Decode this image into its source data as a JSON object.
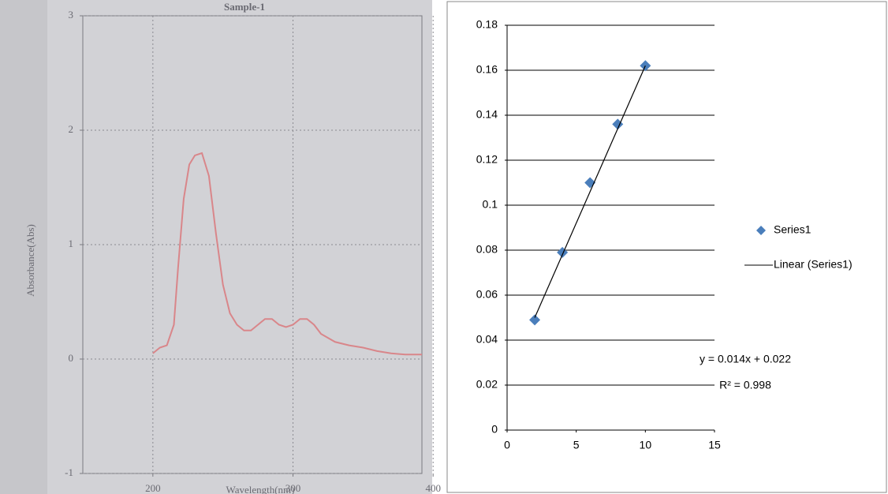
{
  "chart_data": [
    {
      "type": "line",
      "title": "Sample-1",
      "x_label": "Wavelength(nm)",
      "y_label": "Absorbance(Abs)",
      "x": [
        200,
        205,
        210,
        215,
        218,
        222,
        226,
        230,
        235,
        240,
        245,
        250,
        255,
        260,
        265,
        270,
        275,
        280,
        285,
        290,
        295,
        300,
        305,
        310,
        315,
        320,
        330,
        340,
        350,
        360,
        370,
        380,
        392
      ],
      "values": [
        0.05,
        0.1,
        0.12,
        0.3,
        0.8,
        1.4,
        1.7,
        1.78,
        1.8,
        1.6,
        1.1,
        0.65,
        0.4,
        0.3,
        0.25,
        0.25,
        0.3,
        0.35,
        0.35,
        0.3,
        0.28,
        0.3,
        0.35,
        0.35,
        0.3,
        0.22,
        0.15,
        0.12,
        0.1,
        0.07,
        0.05,
        0.04,
        0.04
      ],
      "color": "#d9868a",
      "xlim": [
        150,
        392
      ],
      "ylim": [
        -1,
        3
      ],
      "xticks": [
        200,
        300,
        400
      ],
      "yticks": [
        -1,
        0,
        1,
        2,
        3
      ],
      "grid": "both"
    },
    {
      "type": "scatter",
      "series": [
        {
          "name": "Series1",
          "color": "#4a7ebb",
          "marker": "diamond",
          "x": [
            2,
            4,
            6,
            8,
            10
          ],
          "values": [
            0.049,
            0.079,
            0.11,
            0.136,
            0.162
          ]
        },
        {
          "name": "Linear (Series1)",
          "color": "#000000",
          "marker": "line",
          "x": [
            2,
            10
          ],
          "values": [
            0.05,
            0.162
          ]
        }
      ],
      "annotations": [
        "y = 0.014x + 0.022",
        "R² = 0.998"
      ],
      "xlim": [
        0,
        15
      ],
      "ylim": [
        0,
        0.18
      ],
      "xticks": [
        0,
        5,
        10,
        15
      ],
      "yticks": [
        0,
        0.02,
        0.04,
        0.06,
        0.08,
        0.1,
        0.12,
        0.14,
        0.16,
        0.18
      ],
      "grid": "y",
      "legend": "right"
    }
  ]
}
